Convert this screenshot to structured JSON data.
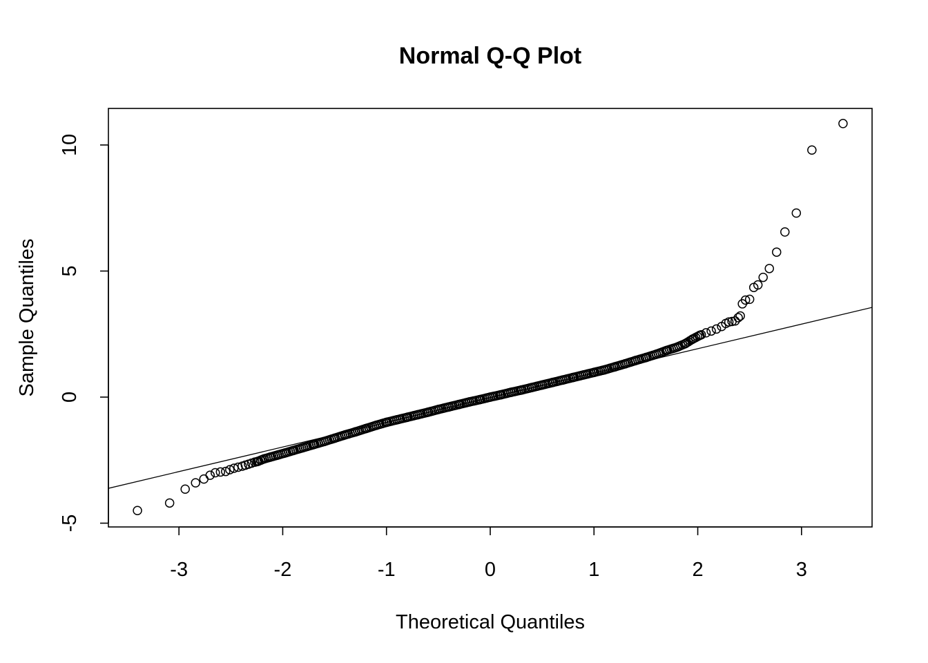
{
  "chart_data": {
    "type": "scatter",
    "title": "Normal Q-Q Plot",
    "xlabel": "Theoretical Quantiles",
    "ylabel": "Sample Quantiles",
    "xlim": [
      -3.68,
      3.68
    ],
    "ylim": [
      -5.15,
      11.45
    ],
    "x_ticks": [
      -3,
      -2,
      -1,
      0,
      1,
      2,
      3
    ],
    "x_tick_labels": [
      "-3",
      "-2",
      "-1",
      "0",
      "1",
      "2",
      "3"
    ],
    "y_ticks": [
      -5,
      0,
      5,
      10
    ],
    "y_tick_labels": [
      "-5",
      "0",
      "5",
      "10"
    ],
    "grid": false,
    "marker": "open-circle",
    "reference_line": {
      "slope": 0.975,
      "intercept": -0.03
    },
    "series": [
      {
        "points": [
          [
            -3.4,
            -4.5
          ],
          [
            -3.09,
            -4.2
          ],
          [
            -2.94,
            -3.65
          ],
          [
            -2.84,
            -3.4
          ],
          [
            -2.76,
            -3.25
          ],
          [
            -2.7,
            -3.1
          ],
          [
            -2.65,
            -3.0
          ],
          [
            -2.6,
            -2.97
          ],
          [
            -2.55,
            -2.95
          ],
          [
            -2.51,
            -2.88
          ],
          [
            -2.47,
            -2.82
          ],
          [
            -2.43,
            -2.78
          ],
          [
            -2.39,
            -2.74
          ],
          [
            -2.36,
            -2.7
          ],
          [
            -2.33,
            -2.66
          ],
          [
            -2.3,
            -2.62
          ],
          [
            -2.27,
            -2.58
          ],
          [
            -2.24,
            -2.55
          ],
          [
            -2.21,
            -2.5
          ],
          [
            -2.18,
            -2.45
          ],
          [
            -2.12,
            -2.38
          ],
          [
            -2.05,
            -2.3
          ],
          [
            -1.98,
            -2.22
          ],
          [
            -1.9,
            -2.12
          ],
          [
            -1.8,
            -2.0
          ],
          [
            -1.7,
            -1.88
          ],
          [
            -1.6,
            -1.76
          ],
          [
            -1.5,
            -1.63
          ],
          [
            -1.4,
            -1.5
          ],
          [
            -1.3,
            -1.38
          ],
          [
            -1.2,
            -1.25
          ],
          [
            -1.1,
            -1.12
          ],
          [
            -1.0,
            -1.0
          ],
          [
            -0.9,
            -0.9
          ],
          [
            -0.8,
            -0.8
          ],
          [
            -0.7,
            -0.7
          ],
          [
            -0.6,
            -0.6
          ],
          [
            -0.5,
            -0.49
          ],
          [
            -0.4,
            -0.39
          ],
          [
            -0.3,
            -0.29
          ],
          [
            -0.2,
            -0.19
          ],
          [
            -0.1,
            -0.1
          ],
          [
            0.0,
            0.0
          ],
          [
            0.1,
            0.09
          ],
          [
            0.2,
            0.19
          ],
          [
            0.3,
            0.28
          ],
          [
            0.4,
            0.38
          ],
          [
            0.5,
            0.48
          ],
          [
            0.6,
            0.58
          ],
          [
            0.7,
            0.68
          ],
          [
            0.8,
            0.78
          ],
          [
            0.9,
            0.88
          ],
          [
            1.0,
            0.98
          ],
          [
            1.1,
            1.08
          ],
          [
            1.2,
            1.2
          ],
          [
            1.3,
            1.32
          ],
          [
            1.4,
            1.45
          ],
          [
            1.5,
            1.57
          ],
          [
            1.6,
            1.7
          ],
          [
            1.7,
            1.85
          ],
          [
            1.8,
            1.98
          ],
          [
            1.88,
            2.12
          ],
          [
            1.95,
            2.3
          ],
          [
            2.02,
            2.45
          ],
          [
            2.08,
            2.55
          ],
          [
            2.13,
            2.62
          ],
          [
            2.18,
            2.7
          ],
          [
            2.23,
            2.8
          ],
          [
            2.27,
            2.92
          ],
          [
            2.3,
            2.98
          ],
          [
            2.33,
            3.0
          ],
          [
            2.36,
            3.02
          ],
          [
            2.39,
            3.15
          ],
          [
            2.41,
            3.22
          ],
          [
            2.43,
            3.7
          ],
          [
            2.46,
            3.85
          ],
          [
            2.5,
            3.88
          ],
          [
            2.54,
            4.35
          ],
          [
            2.58,
            4.45
          ],
          [
            2.63,
            4.75
          ],
          [
            2.69,
            5.1
          ],
          [
            2.76,
            5.75
          ],
          [
            2.84,
            6.55
          ],
          [
            2.95,
            7.3
          ],
          [
            3.1,
            9.8
          ],
          [
            3.4,
            10.85
          ]
        ]
      }
    ]
  }
}
